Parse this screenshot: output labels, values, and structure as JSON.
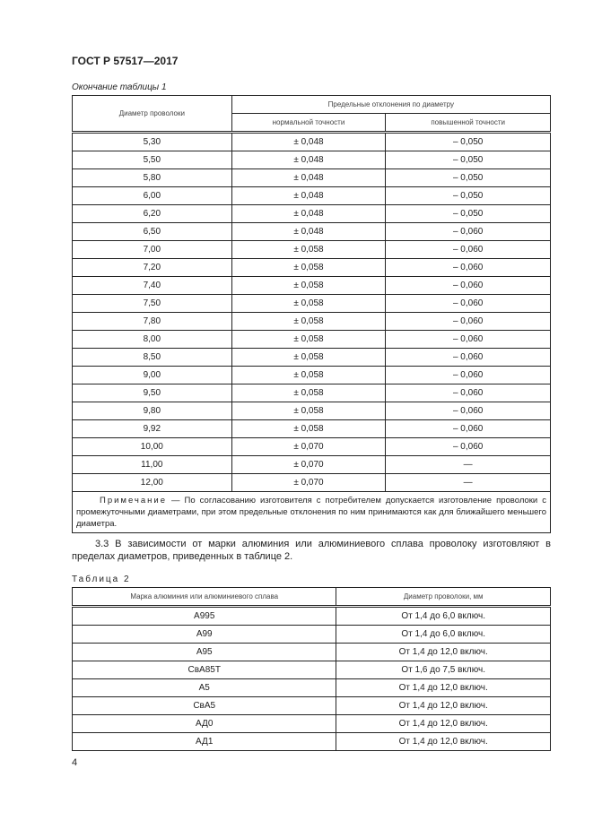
{
  "header": "ГОСТ Р 57517—2017",
  "table1": {
    "caption": "Окончание таблицы 1",
    "col1": "Диаметр проволоки",
    "group": "Предельные отклонения по диаметру",
    "col2": "нормальной точности",
    "col3": "повышенной точности",
    "rows": [
      [
        "5,30",
        "± 0,048",
        "– 0,050"
      ],
      [
        "5,50",
        "± 0,048",
        "– 0,050"
      ],
      [
        "5,80",
        "± 0,048",
        "– 0,050"
      ],
      [
        "6,00",
        "± 0,048",
        "– 0,050"
      ],
      [
        "6,20",
        "± 0,048",
        "– 0,050"
      ],
      [
        "6,50",
        "± 0,048",
        "– 0,060"
      ],
      [
        "7,00",
        "± 0,058",
        "– 0,060"
      ],
      [
        "7,20",
        "± 0,058",
        "– 0,060"
      ],
      [
        "7,40",
        "± 0,058",
        "– 0,060"
      ],
      [
        "7,50",
        "± 0,058",
        "– 0,060"
      ],
      [
        "7,80",
        "± 0,058",
        "– 0,060"
      ],
      [
        "8,00",
        "± 0,058",
        "– 0,060"
      ],
      [
        "8,50",
        "± 0,058",
        "– 0,060"
      ],
      [
        "9,00",
        "± 0,058",
        "– 0,060"
      ],
      [
        "9,50",
        "± 0,058",
        "– 0,060"
      ],
      [
        "9,80",
        "± 0,058",
        "– 0,060"
      ],
      [
        "9,92",
        "± 0,058",
        "– 0,060"
      ],
      [
        "10,00",
        "± 0,070",
        "– 0,060"
      ],
      [
        "11,00",
        "± 0,070",
        "—"
      ],
      [
        "12,00",
        "± 0,070",
        "—"
      ]
    ],
    "note_label": "Примечание",
    "note_text": " — По согласованию изготовителя с потребителем допускается изготовление проволоки с промежуточными диаметрами, при этом предельные отклонения по ним принимаются как для ближайшего меньшего диаметра."
  },
  "paragraph": "3.3 В зависимости от марки алюминия или алюминиевого сплава проволоку изготовляют в пределах диаметров, приведенных в таблице 2.",
  "table2": {
    "caption": "Таблица 2",
    "col1": "Марка алюминия или алюминиевого сплава",
    "col2": "Диаметр проволоки, мм",
    "rows": [
      [
        "А995",
        "От 1,4 до 6,0 включ."
      ],
      [
        "А99",
        "От 1,4 до 6,0 включ."
      ],
      [
        "А95",
        "От 1,4 до 12,0 включ."
      ],
      [
        "СвА85Т",
        "От 1,6 до 7,5 включ."
      ],
      [
        "А5",
        "От 1,4 до 12,0 включ."
      ],
      [
        "СвА5",
        "От 1,4 до 12,0 включ."
      ],
      [
        "АД0",
        "От 1,4 до 12,0 включ."
      ],
      [
        "АД1",
        "От 1,4 до 12,0 включ."
      ]
    ]
  },
  "page_number": "4"
}
